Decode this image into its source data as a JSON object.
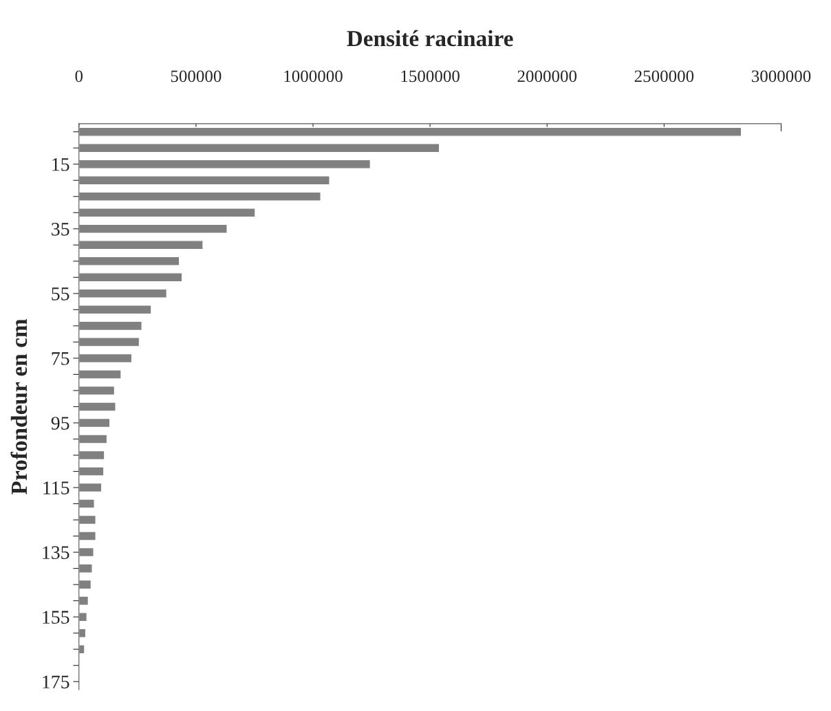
{
  "chart_data": {
    "type": "bar",
    "orientation": "horizontal",
    "xlabel": "Densité racinaire",
    "ylabel": "Profondeur en cm",
    "categories": [
      null,
      null,
      "15",
      null,
      null,
      null,
      "35",
      null,
      null,
      null,
      "55",
      null,
      null,
      null,
      "75",
      null,
      null,
      null,
      "95",
      null,
      null,
      null,
      "115",
      null,
      null,
      null,
      "135",
      null,
      null,
      null,
      "155",
      null,
      null,
      null,
      "175"
    ],
    "values": [
      2830000,
      1540000,
      1245000,
      1071000,
      1033000,
      753000,
      633000,
      530000,
      429000,
      441000,
      375000,
      309000,
      269000,
      258000,
      226000,
      180000,
      152000,
      157000,
      132000,
      120000,
      109000,
      106000,
      97000,
      66000,
      72000,
      72000,
      63000,
      57000,
      52000,
      40000,
      34000,
      29000,
      24000,
      null,
      null
    ],
    "color": "#808080",
    "xlim": [
      0,
      3000000
    ],
    "xticks": [
      0,
      500000,
      1000000,
      1500000,
      2000000,
      2500000,
      3000000
    ],
    "grid": false
  }
}
